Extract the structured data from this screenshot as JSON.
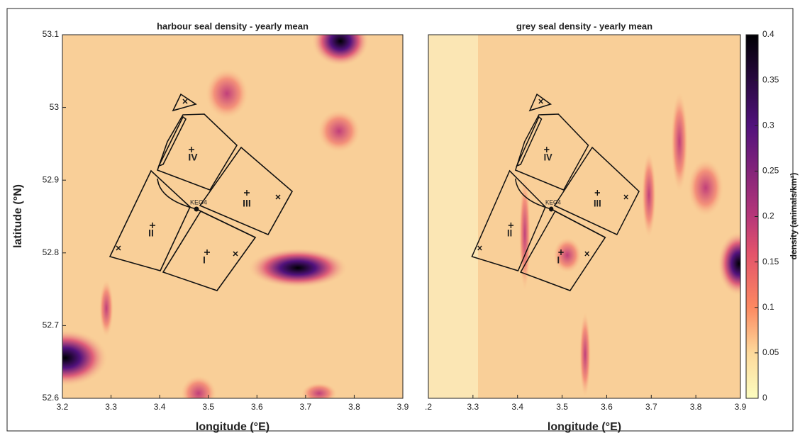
{
  "chart_data": [
    {
      "type": "heatmap",
      "title": "harbour seal density - yearly mean",
      "xlabel": "longitude (°E)",
      "ylabel": "latitude (°N)",
      "xlim": [
        3.2,
        3.9
      ],
      "ylim": [
        52.6,
        53.1
      ],
      "xticks": [
        3.2,
        3.3,
        3.4,
        3.5,
        3.6,
        3.7,
        3.8,
        3.9
      ],
      "yticks": [
        52.6,
        52.7,
        52.8,
        52.9,
        53,
        53.1
      ],
      "annotations": [
        "IV",
        "III",
        "II",
        "I",
        "KEO4"
      ]
    },
    {
      "type": "heatmap",
      "title": "grey seal density - yearly mean",
      "xlabel": "longitude (°E)",
      "xlim": [
        3.2,
        3.9
      ],
      "ylim": [
        52.6,
        53.1
      ],
      "xticks": [
        {
          "value": 3.2,
          "label": ".2"
        },
        3.3,
        3.4,
        3.5,
        3.6,
        3.7,
        3.8,
        3.9
      ],
      "annotations": [
        "IV",
        "III",
        "II",
        "I",
        "KEO4"
      ],
      "colorbar": {
        "label": "density (animals/km²)",
        "lim": [
          0,
          0.4
        ],
        "ticks": [
          0,
          0.05,
          0.1,
          0.15,
          0.2,
          0.25,
          0.3,
          0.35,
          0.4
        ]
      }
    }
  ]
}
